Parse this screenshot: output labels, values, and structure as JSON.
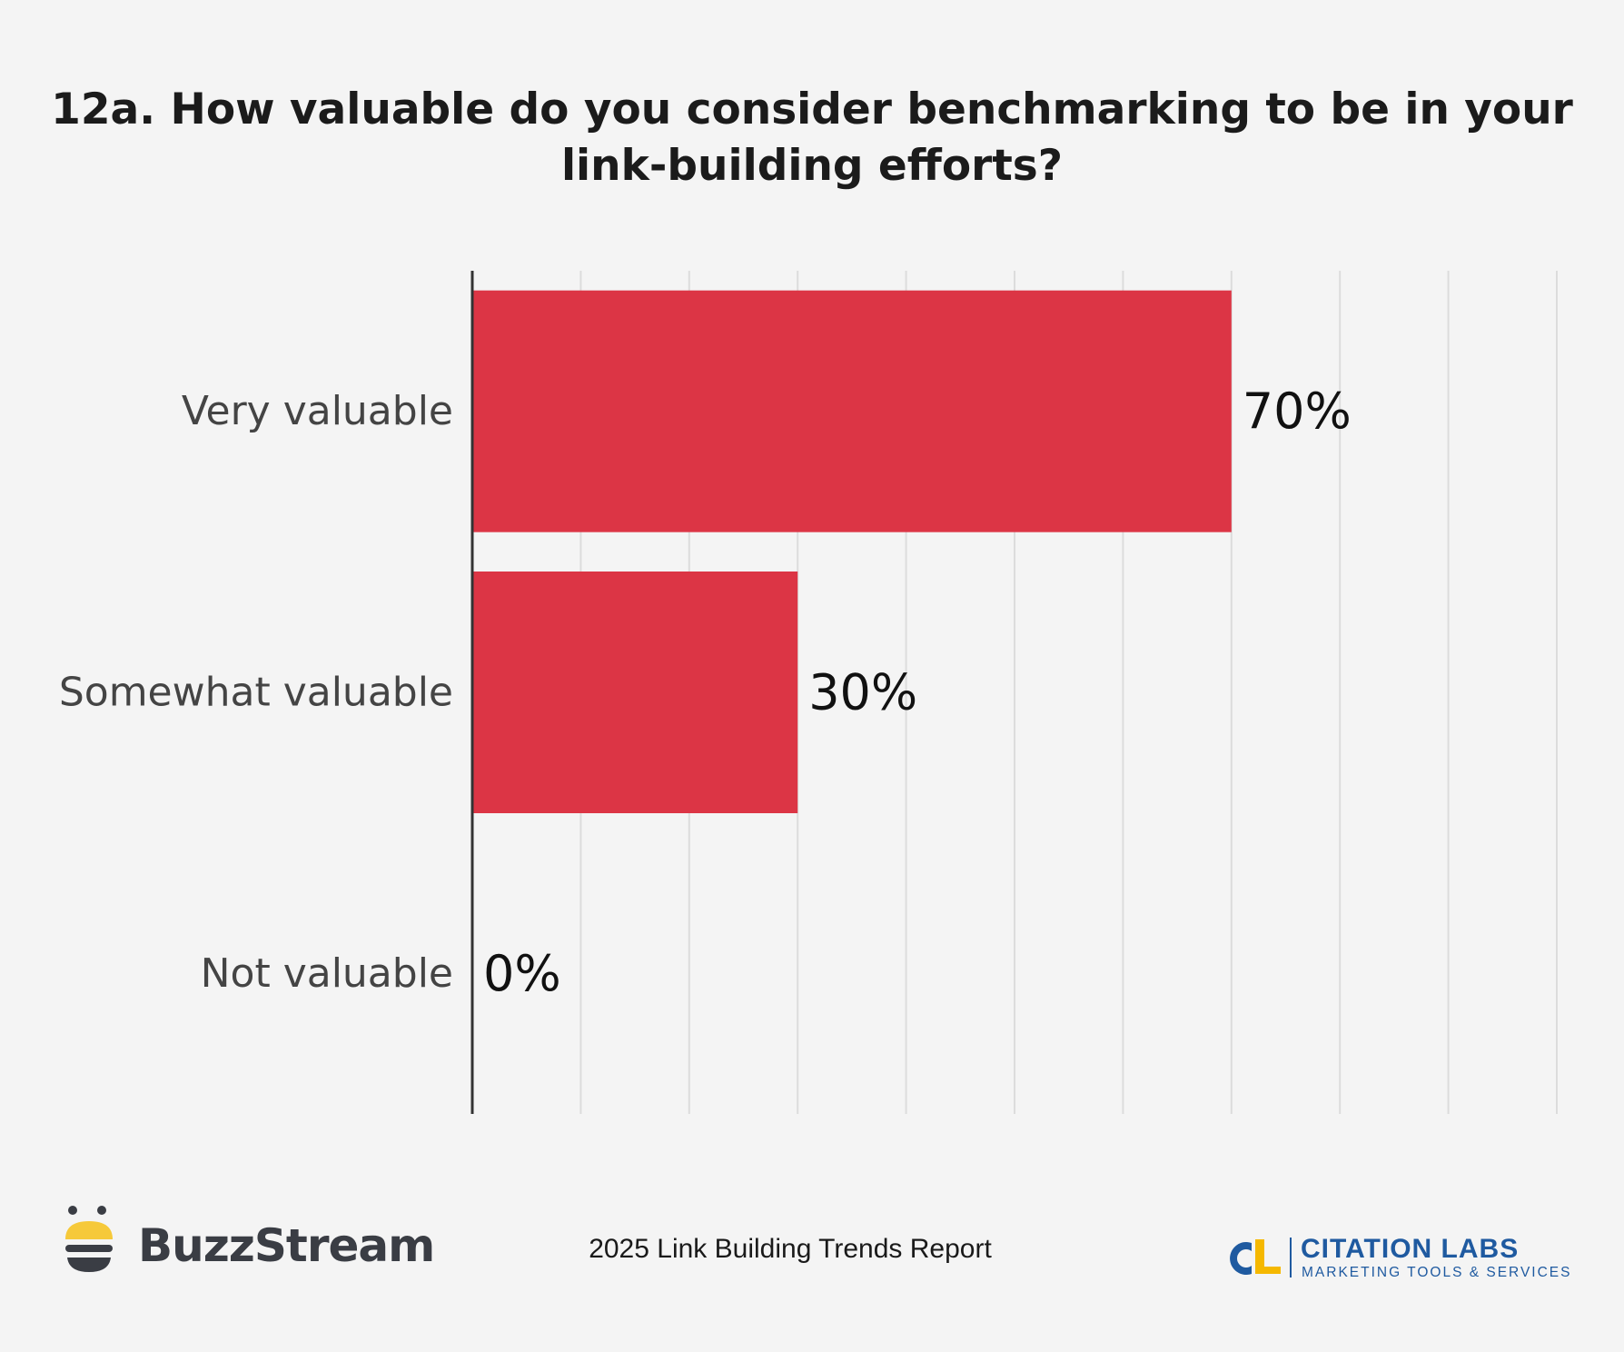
{
  "chart_data": {
    "type": "bar",
    "orientation": "horizontal",
    "title": "12a. How valuable do you consider benchmarking to be in your link-building efforts?",
    "categories": [
      "Very valuable",
      "Somewhat valuable",
      "Not valuable"
    ],
    "values": [
      70,
      30,
      0
    ],
    "value_labels": [
      "70%",
      "30%",
      "0%"
    ],
    "xlim": [
      0,
      100
    ],
    "grid": true,
    "bar_color": "#dc3545"
  },
  "footer": {
    "report": "2025 Link Building Trends Report",
    "brand_left": "BuzzStream",
    "brand_right_name": "CITATION LABS",
    "brand_right_tagline": "MARKETING TOOLS & SERVICES"
  },
  "colors": {
    "background": "#f4f4f4",
    "buzz_yellow": "#f6c93a",
    "buzz_dark": "#3a3d44",
    "cl_blue": "#1f5aa0",
    "cl_yellow": "#f5b800"
  }
}
